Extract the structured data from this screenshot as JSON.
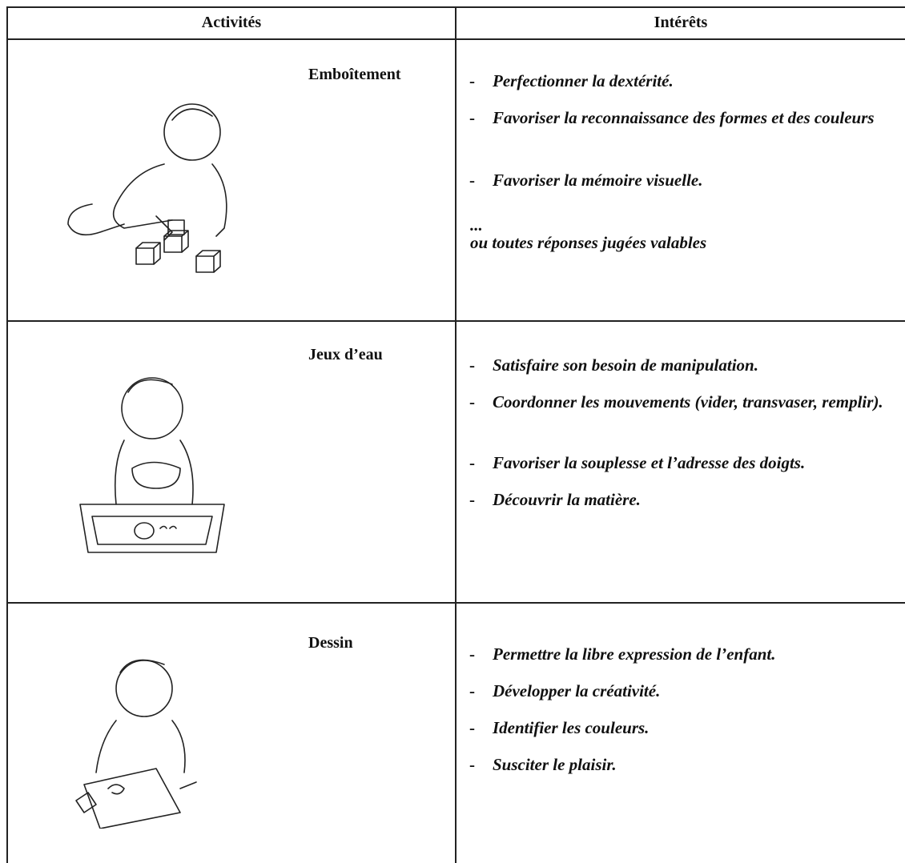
{
  "header": {
    "activities": "Activités",
    "interests": "Intérêts"
  },
  "bullet": "-",
  "rows": [
    {
      "activity": "Emboîtement",
      "items": [
        "Perfectionner la dextérité.",
        "Favoriser la reconnaissance des formes et des couleurs",
        "Favoriser la mémoire visuelle."
      ],
      "ellipsis": "...",
      "note": "ou toutes réponses jugées valables"
    },
    {
      "activity": "Jeux d’eau",
      "items": [
        "Satisfaire son besoin de manipulation.",
        "Coordonner les mouvements (vider, transvaser, remplir).",
        "Favoriser la souplesse et l’adresse des doigts.",
        "Découvrir la matière."
      ]
    },
    {
      "activity": "Dessin",
      "items": [
        "Permettre la libre expression de l’enfant.",
        "Développer la créativité.",
        "Identifier les couleurs.",
        "Susciter le plaisir."
      ]
    }
  ]
}
